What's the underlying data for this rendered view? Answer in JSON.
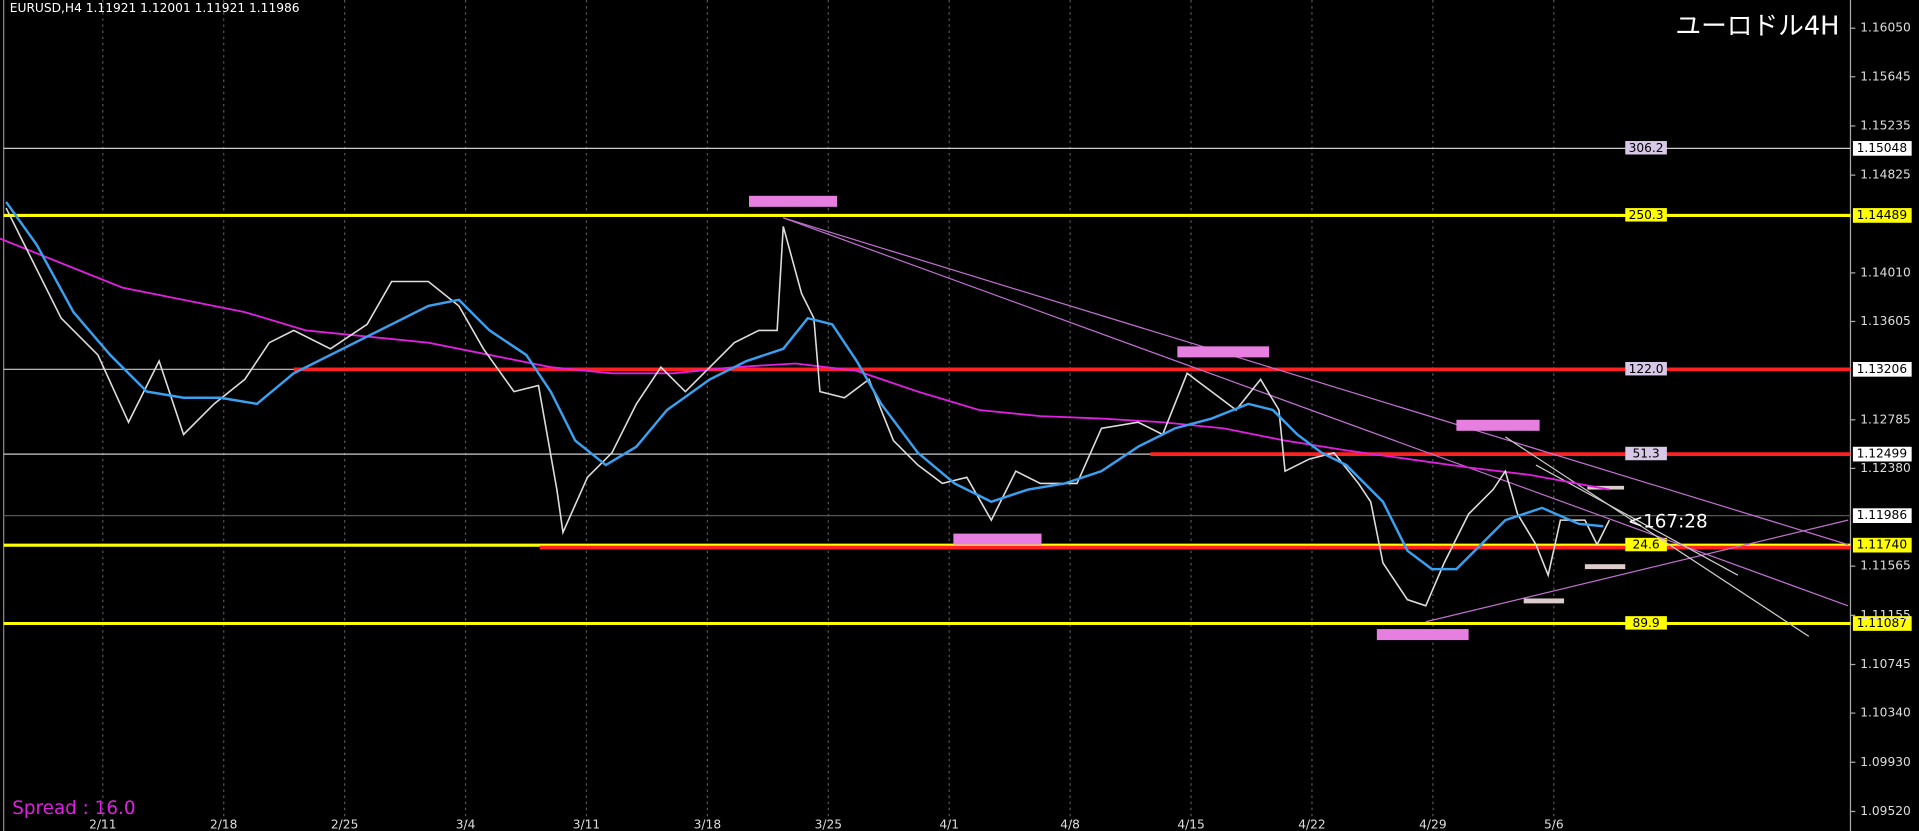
{
  "header": {
    "text": "EURUSD,H4  1.11921 1.12001 1.11921 1.11986"
  },
  "title": "ユーロドル4H",
  "price_axis": {
    "ylim": [
      1.09357,
      1.16285
    ],
    "ticks": [
      {
        "value": 1.1605,
        "label": "1.16050"
      },
      1.15645,
      1.15235,
      1.14825,
      {
        "value": 1.1401,
        "label": "1.14010"
      },
      1.13605,
      1.12785,
      {
        "value": 1.1238,
        "label": "1.12380"
      },
      1.11565,
      1.11155,
      1.10745,
      {
        "value": 1.1034,
        "label": "1.10340"
      },
      {
        "value": 1.0993,
        "label": "1.09930"
      },
      {
        "value": 1.0952,
        "label": "1.09520"
      }
    ]
  },
  "dates": [
    "2/11",
    "2/18",
    "2/25",
    "3/4",
    "3/11",
    "3/18",
    "3/25",
    "4/1",
    "4/8",
    "4/15",
    "4/22",
    "4/29",
    "5/6"
  ],
  "levels": [
    {
      "price": 1.15048,
      "distance": 306.2,
      "style": "white"
    },
    {
      "price": 1.14489,
      "distance": 250.3,
      "style": "yellow"
    },
    {
      "price": 1.13206,
      "distance": {
        "value": 122.0,
        "label": "122.0"
      },
      "style": "white-red"
    },
    {
      "price": 1.12499,
      "distance": 51.3,
      "style": "white-red"
    },
    {
      "price": {
        "value": 1.1174,
        "label": "1.11740"
      },
      "distance": 24.6,
      "style": "yellow-red"
    },
    {
      "price": 1.11087,
      "distance": 89.9,
      "style": "yellow"
    }
  ],
  "current_price": 1.11986,
  "timer": "<167:28",
  "spread": "Spread : 16.0"
}
